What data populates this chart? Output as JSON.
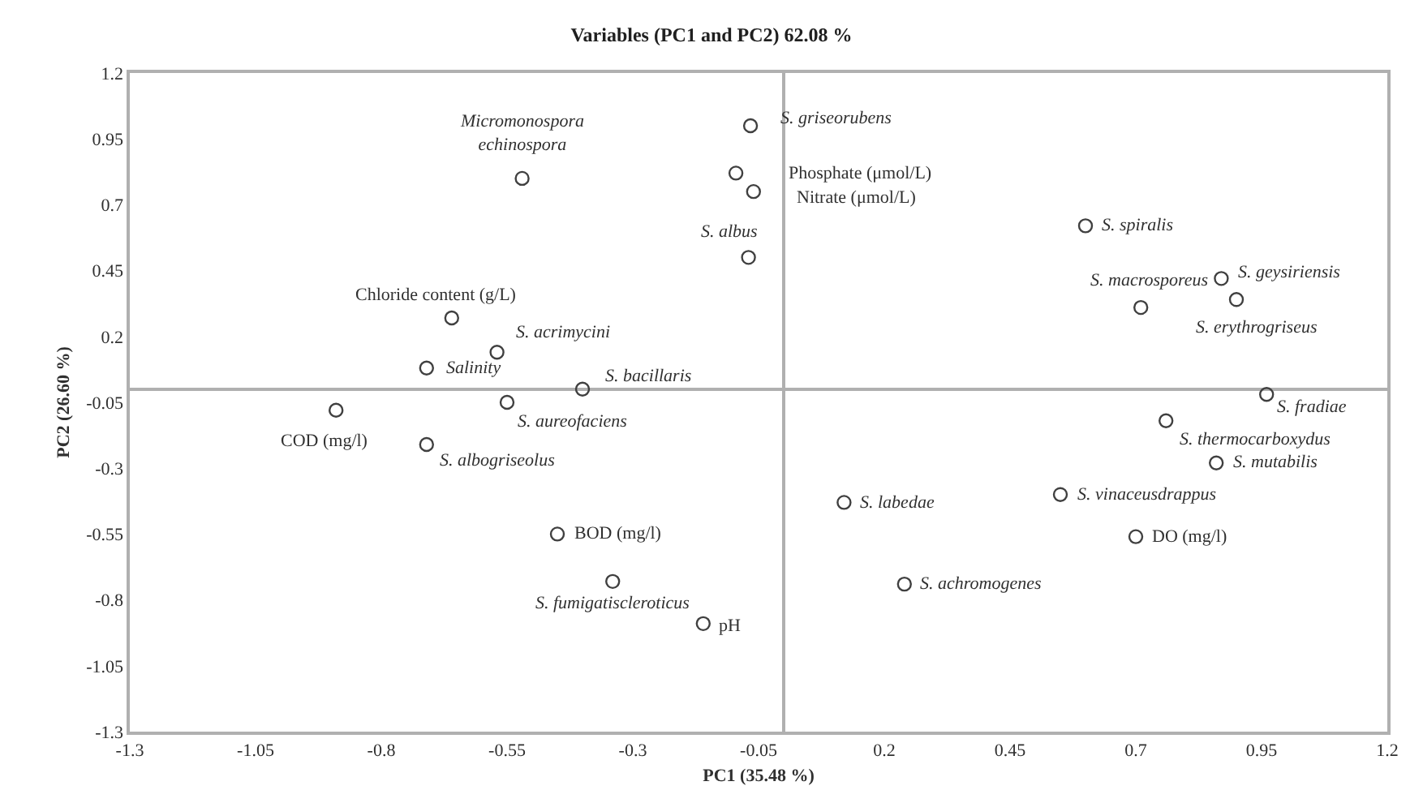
{
  "chart_data": {
    "type": "scatter",
    "title": "Variables (PC1 and PC2) 62.08 %",
    "xlabel": "PC1 (35.48 %)",
    "ylabel": "PC2 (26.60 %)",
    "x": [
      -0.066,
      -0.095,
      -0.06,
      -0.07,
      -0.52,
      -0.66,
      -0.57,
      -0.71,
      -0.4,
      -0.89,
      -0.55,
      -0.71,
      -0.45,
      -0.34,
      -0.16,
      0.6,
      0.71,
      0.87,
      0.9,
      0.96,
      0.76,
      0.86,
      0.55,
      0.12,
      0.7,
      0.24
    ],
    "values": [
      1.0,
      0.82,
      0.75,
      0.5,
      0.8,
      0.27,
      0.14,
      0.08,
      0.0,
      -0.08,
      -0.05,
      -0.21,
      -0.55,
      -0.73,
      -0.89,
      0.62,
      0.31,
      0.42,
      0.34,
      -0.02,
      -0.12,
      -0.28,
      -0.4,
      -0.43,
      -0.56,
      -0.74
    ],
    "color": "#404040",
    "marker": "circle",
    "xlim": [
      -1.3,
      1.2
    ],
    "xticks": [
      -1.3,
      -1.05,
      -0.8,
      -0.55,
      -0.3,
      -0.05,
      0.2,
      0.45,
      0.7,
      0.95,
      1.2
    ],
    "ylim": [
      -1.3,
      1.2
    ],
    "yticks": [
      -1.3,
      -1.05,
      -0.8,
      -0.55,
      -0.3,
      -0.05,
      0.2,
      0.45,
      0.7,
      0.95,
      1.2
    ],
    "annotations": [
      {
        "text": "S. griseorubens",
        "x": -0.066,
        "y": 1.0
      },
      {
        "text": "Phosphate (μmol/L)",
        "x": -0.095,
        "y": 0.82
      },
      {
        "text": "Nitrate (μmol/L)",
        "x": -0.06,
        "y": 0.75
      },
      {
        "text": "S. albus",
        "x": -0.07,
        "y": 0.5
      },
      {
        "text": "Micromonospora echinospora",
        "x": -0.52,
        "y": 0.8
      },
      {
        "text": "Chloride content (g/L)",
        "x": -0.66,
        "y": 0.27
      },
      {
        "text": "S. acrimycini",
        "x": -0.57,
        "y": 0.14
      },
      {
        "text": "Salinity",
        "x": -0.71,
        "y": 0.08
      },
      {
        "text": "S. bacillaris",
        "x": -0.4,
        "y": 0.0
      },
      {
        "text": "COD (mg/l)",
        "x": -0.89,
        "y": -0.08
      },
      {
        "text": "S. aureofaciens",
        "x": -0.55,
        "y": -0.05
      },
      {
        "text": "S. albogriseolus",
        "x": -0.71,
        "y": -0.21
      },
      {
        "text": "BOD (mg/l)",
        "x": -0.45,
        "y": -0.55
      },
      {
        "text": "S. fumigatiscleroticus",
        "x": -0.34,
        "y": -0.73
      },
      {
        "text": "pH",
        "x": -0.16,
        "y": -0.89
      },
      {
        "text": "S. spiralis",
        "x": 0.6,
        "y": 0.62
      },
      {
        "text": "S. macrosporeus",
        "x": 0.71,
        "y": 0.31
      },
      {
        "text": "S. geysiriensis",
        "x": 0.87,
        "y": 0.42
      },
      {
        "text": "S. erythrogriseus",
        "x": 0.9,
        "y": 0.34
      },
      {
        "text": "S. fradiae",
        "x": 0.96,
        "y": -0.02
      },
      {
        "text": "S. thermocarboxydus",
        "x": 0.76,
        "y": -0.12
      },
      {
        "text": "S. mutabilis",
        "x": 0.86,
        "y": -0.28
      },
      {
        "text": "S. vinaceusdrappus",
        "x": 0.55,
        "y": -0.4
      },
      {
        "text": "S. labedae",
        "x": 0.12,
        "y": -0.43
      },
      {
        "text": "DO (mg/l)",
        "x": 0.7,
        "y": -0.56
      },
      {
        "text": "S. achromogenes",
        "x": 0.24,
        "y": -0.74
      }
    ]
  }
}
